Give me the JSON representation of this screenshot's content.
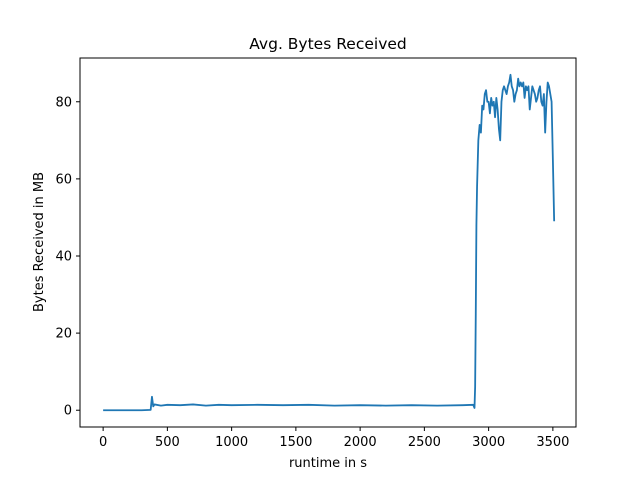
{
  "chart_data": {
    "type": "line",
    "title": "Avg. Bytes Received",
    "xlabel": "runtime in s",
    "ylabel": "Bytes Received in MB",
    "xlim": [
      -180,
      3680
    ],
    "ylim": [
      -4.35,
      91.35
    ],
    "xticks": [
      0,
      500,
      1000,
      1500,
      2000,
      2500,
      3000,
      3500
    ],
    "yticks": [
      0,
      20,
      40,
      60,
      80
    ],
    "grid": false,
    "legend": "none",
    "line_color": "#1f77b4",
    "series": [
      {
        "name": "",
        "x": [
          0,
          100,
          200,
          300,
          370,
          380,
          390,
          400,
          450,
          500,
          600,
          700,
          800,
          900,
          1000,
          1200,
          1400,
          1600,
          1800,
          2000,
          2200,
          2400,
          2600,
          2800,
          2880,
          2890,
          2895,
          2900,
          2905,
          2910,
          2920,
          2930,
          2940,
          2950,
          2960,
          2970,
          2980,
          2990,
          3000,
          3010,
          3020,
          3030,
          3040,
          3050,
          3060,
          3070,
          3080,
          3090,
          3100,
          3110,
          3120,
          3130,
          3140,
          3150,
          3160,
          3170,
          3180,
          3190,
          3200,
          3210,
          3220,
          3230,
          3240,
          3250,
          3260,
          3270,
          3280,
          3290,
          3300,
          3310,
          3320,
          3330,
          3340,
          3350,
          3360,
          3370,
          3380,
          3390,
          3400,
          3410,
          3420,
          3430,
          3440,
          3450,
          3460,
          3470,
          3480,
          3490,
          3500,
          3510
        ],
        "y": [
          0,
          0,
          0,
          0,
          0.1,
          3.5,
          1.0,
          1.5,
          1.2,
          1.4,
          1.3,
          1.5,
          1.2,
          1.4,
          1.3,
          1.4,
          1.3,
          1.4,
          1.2,
          1.3,
          1.2,
          1.3,
          1.2,
          1.3,
          1.4,
          0.6,
          6,
          25,
          48,
          58,
          70,
          74,
          72,
          79,
          78,
          82,
          83,
          80,
          80,
          77,
          81,
          79,
          80,
          76,
          81,
          78,
          73,
          70,
          80,
          83,
          84,
          83,
          82,
          84,
          85,
          87,
          84,
          83,
          80,
          82,
          83,
          86,
          84,
          85,
          84,
          85,
          81,
          84,
          83,
          84,
          78,
          81,
          84,
          83,
          82,
          80,
          81,
          83,
          84,
          80,
          79,
          82,
          72,
          80,
          85,
          84,
          82,
          80,
          65,
          49
        ]
      }
    ]
  }
}
